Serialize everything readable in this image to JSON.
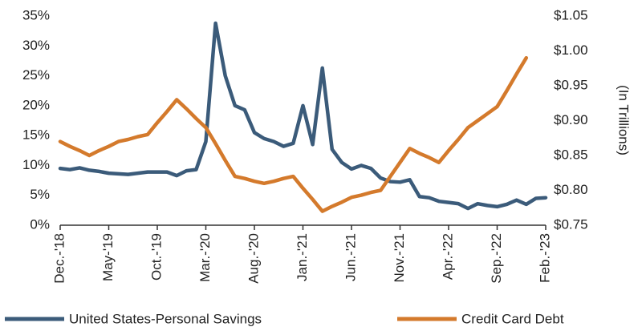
{
  "chart_data": {
    "type": "line",
    "y2_label": "(In Trillions)",
    "categories": [
      "Dec.-'18",
      null,
      null,
      null,
      null,
      "May-'19",
      null,
      null,
      null,
      null,
      "Oct.-'19",
      null,
      null,
      null,
      null,
      "Mar.-'20",
      null,
      null,
      null,
      null,
      "Aug.-'20",
      null,
      null,
      null,
      null,
      "Jan.-'21",
      null,
      null,
      null,
      null,
      "Jun.-'21",
      null,
      null,
      null,
      null,
      "Nov.-'21",
      null,
      null,
      null,
      null,
      "Apr.-'22",
      null,
      null,
      null,
      null,
      "Sep.-'22",
      null,
      null,
      null,
      null,
      "Feb.-'23"
    ],
    "series": [
      {
        "name": "United States-Personal Savings",
        "color": "#3b5b7a",
        "axis": "y",
        "values": [
          9.5,
          9.3,
          9.6,
          9.2,
          9.0,
          8.7,
          8.6,
          8.5,
          8.7,
          8.9,
          8.9,
          8.9,
          8.3,
          9.1,
          9.3,
          14,
          33.8,
          25,
          20,
          19.3,
          15.5,
          14.5,
          14,
          13.2,
          13.7,
          20,
          13.5,
          26.3,
          12.7,
          10.5,
          9.4,
          10,
          9.5,
          7.9,
          7.3,
          7.2,
          7.6,
          4.8,
          4.6,
          4,
          3.8,
          3.6,
          2.8,
          3.6,
          3.3,
          3.1,
          3.5,
          4.2,
          3.5,
          4.5,
          4.6
        ]
      },
      {
        "name": "Credit Card Debt",
        "color": "#d47a2c",
        "axis": "y2",
        "values": [
          0.87,
          0.863,
          0.857,
          0.85,
          0.857,
          0.863,
          0.87,
          0.873,
          0.877,
          0.88,
          0.897,
          0.913,
          0.93,
          0.917,
          0.903,
          0.89,
          0.867,
          0.843,
          0.82,
          0.817,
          0.813,
          0.81,
          0.813,
          0.817,
          0.82,
          0.803,
          0.787,
          0.77,
          0.777,
          0.783,
          0.79,
          0.793,
          0.797,
          0.8,
          0.82,
          0.84,
          0.86,
          0.853,
          0.847,
          0.84,
          0.857,
          0.873,
          0.89,
          0.9,
          0.91,
          0.92,
          0.943,
          0.967,
          0.99,
          null,
          null
        ]
      }
    ],
    "ylim": [
      0,
      35
    ],
    "yticks": [
      {
        "value": 0,
        "label": "0%"
      },
      {
        "value": 5,
        "label": "5%"
      },
      {
        "value": 10,
        "label": "10%"
      },
      {
        "value": 15,
        "label": "15%"
      },
      {
        "value": 20,
        "label": "20%"
      },
      {
        "value": 25,
        "label": "25%"
      },
      {
        "value": 30,
        "label": "30%"
      },
      {
        "value": 35,
        "label": "35%"
      }
    ],
    "y2lim": [
      0.75,
      1.05
    ],
    "y2ticks": [
      {
        "value": 0.75,
        "label": "$0.75"
      },
      {
        "value": 0.8,
        "label": "$0.80"
      },
      {
        "value": 0.85,
        "label": "$0.85"
      },
      {
        "value": 0.9,
        "label": "$0.90"
      },
      {
        "value": 0.95,
        "label": "$0.95"
      },
      {
        "value": 1.0,
        "label": "$1.00"
      },
      {
        "value": 1.05,
        "label": "$1.05"
      }
    ],
    "grid": false,
    "legend": "bottom"
  }
}
